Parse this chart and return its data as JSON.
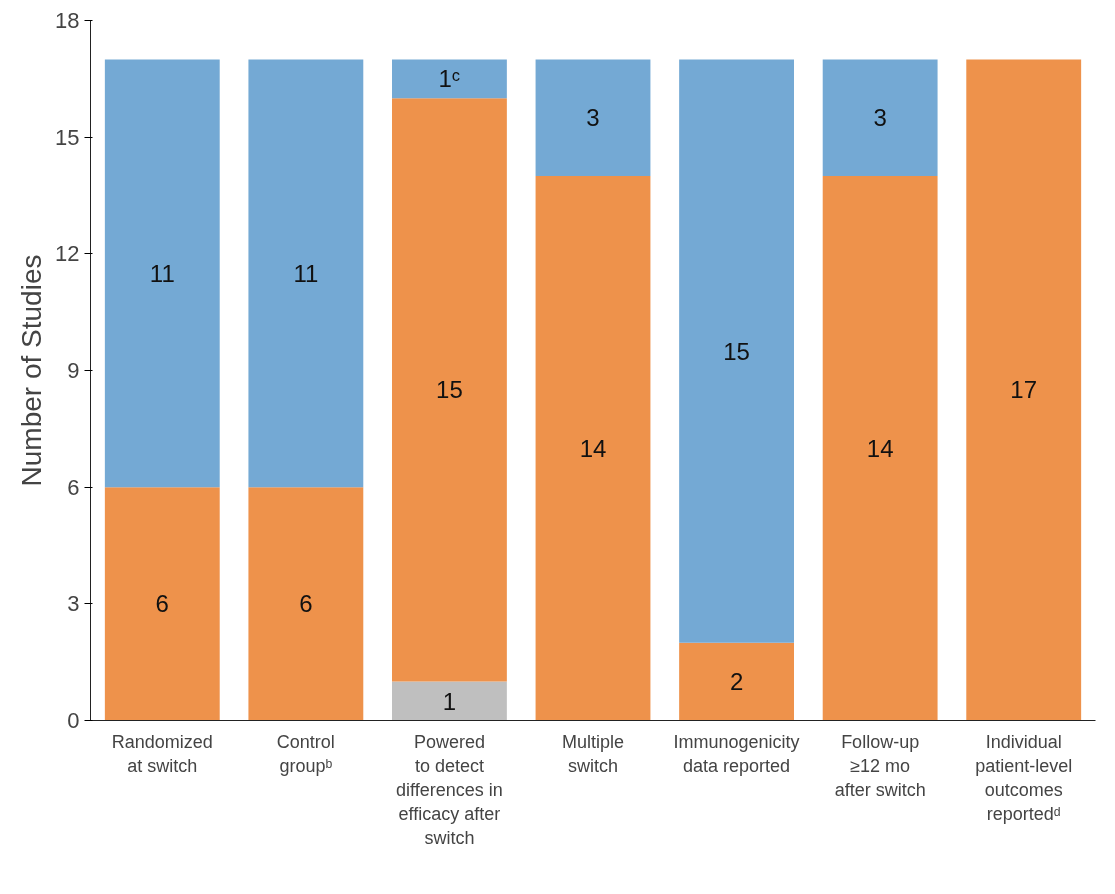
{
  "chart_data": {
    "type": "bar",
    "stacked": true,
    "ylabel": "Number of Studies",
    "categories": [
      "Randomized\nat switch",
      "Control\ngroupᵇ",
      "Powered\nto detect\ndifferences in\nefficacy after\nswitch",
      "Multiple\nswitch",
      "Immunogenicity\ndata reported",
      "Follow-up\n≥12 mo\nafter switch",
      "Individual\npatient-level\noutcomes\nreportedᵈ"
    ],
    "series": [
      {
        "color": "#bfbfbf",
        "values": [
          null,
          null,
          1,
          null,
          null,
          null,
          null
        ],
        "value_labels": [
          null,
          null,
          "1",
          null,
          null,
          null,
          null
        ]
      },
      {
        "color": "#ee924b",
        "values": [
          6,
          6,
          15,
          14,
          2,
          14,
          17
        ],
        "value_labels": [
          "6",
          "6",
          "15",
          "14",
          "2",
          "14",
          "17"
        ]
      },
      {
        "color": "#74a9d4",
        "values": [
          11,
          11,
          1,
          3,
          15,
          3,
          null
        ],
        "value_labels": [
          "11",
          "11",
          "1ᶜ",
          "3",
          "15",
          "3",
          null
        ]
      }
    ],
    "ylim": [
      0,
      18
    ],
    "yticks": [
      0,
      3,
      6,
      9,
      12,
      15,
      18
    ],
    "grid": false
  }
}
